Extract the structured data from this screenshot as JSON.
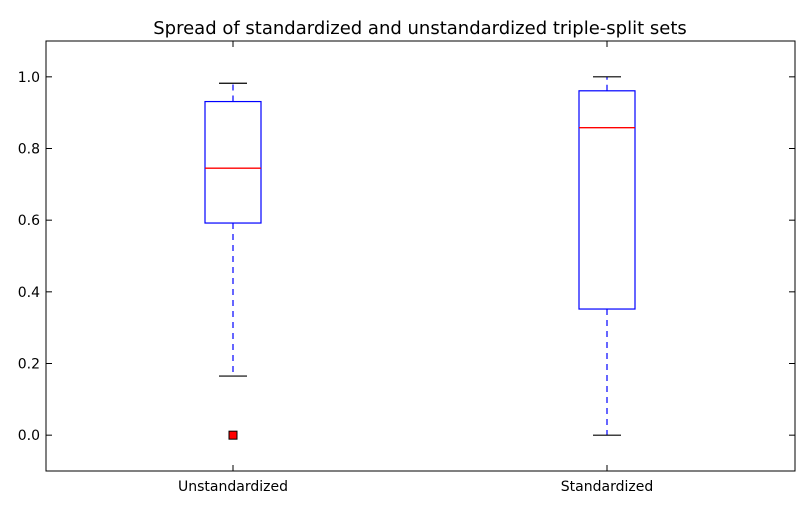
{
  "chart_data": {
    "type": "box",
    "title": "Spread of standardized and unstandardized triple-split sets",
    "xlabel": "",
    "ylabel": "",
    "ylim": [
      -0.1,
      1.1
    ],
    "yticks": [
      0.0,
      0.2,
      0.4,
      0.6,
      0.8,
      1.0
    ],
    "ytick_labels": [
      "0.0",
      "0.2",
      "0.4",
      "0.6",
      "0.8",
      "1.0"
    ],
    "grid": false,
    "categories": [
      "Unstandardized",
      "Standardized"
    ],
    "boxes": [
      {
        "category": "Unstandardized",
        "whisker_low": 0.165,
        "q1": 0.592,
        "median": 0.745,
        "q3": 0.931,
        "whisker_high": 0.982,
        "outliers": [
          0.0
        ]
      },
      {
        "category": "Standardized",
        "whisker_low": 0.0,
        "q1": 0.352,
        "median": 0.858,
        "q3": 0.961,
        "whisker_high": 1.0,
        "outliers": []
      }
    ],
    "colors": {
      "box": "#0000ff",
      "median": "#ff0000",
      "whisker": "#0000ff",
      "cap": "#000000",
      "outlier_fill": "#ff0000",
      "outlier_edge": "#000000",
      "axes": "#000000"
    }
  }
}
